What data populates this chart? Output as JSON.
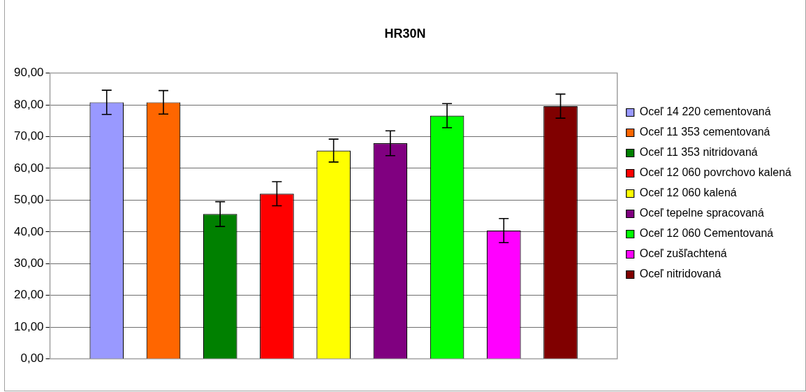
{
  "chart_data": {
    "type": "bar",
    "title": "HR30N",
    "categories": [
      null
    ],
    "series": [
      {
        "name": "Oceľ 14 220 cementovaná",
        "color": "#9999ff",
        "values": [
          80.8
        ],
        "errors": [
          3.8
        ]
      },
      {
        "name": "Oceľ 11 353 cementovaná",
        "color": "#ff6600",
        "values": [
          80.8
        ],
        "errors": [
          3.7
        ]
      },
      {
        "name": "Oceľ 11 353 nitridovaná",
        "color": "#008000",
        "values": [
          45.6
        ],
        "errors": [
          3.9
        ]
      },
      {
        "name": "Oceľ 12 060 povrchovo kalená",
        "color": "#ff0000",
        "values": [
          52.0
        ],
        "errors": [
          3.8
        ]
      },
      {
        "name": "Oceľ 12 060 kalená",
        "color": "#ffff00",
        "values": [
          65.6
        ],
        "errors": [
          3.6
        ]
      },
      {
        "name": "Oceľ tepelne spracovaná",
        "color": "#800080",
        "values": [
          67.9
        ],
        "errors": [
          3.9
        ]
      },
      {
        "name": "Oceľ 12 060 Cementovaná",
        "color": "#00ff00",
        "values": [
          76.6
        ],
        "errors": [
          3.8
        ]
      },
      {
        "name": "Oceľ zušľachtená",
        "color": "#ff00ff",
        "values": [
          40.4
        ],
        "errors": [
          3.8
        ]
      },
      {
        "name": "Oceľ nitridovaná",
        "color": "#800000",
        "values": [
          79.6
        ],
        "errors": [
          3.8
        ]
      }
    ],
    "ylim": [
      0,
      90
    ],
    "yticks": [
      {
        "value": 0,
        "label": "0,00"
      },
      {
        "value": 10,
        "label": "10,00"
      },
      {
        "value": 20,
        "label": "20,00"
      },
      {
        "value": 30,
        "label": "30,00"
      },
      {
        "value": 40,
        "label": "40,00"
      },
      {
        "value": 50,
        "label": "50,00"
      },
      {
        "value": 60,
        "label": "60,00"
      },
      {
        "value": 70,
        "label": "70,00"
      },
      {
        "value": 80,
        "label": "80,00"
      },
      {
        "value": 90,
        "label": "90,00"
      }
    ],
    "grid": "y",
    "legend": "right"
  }
}
